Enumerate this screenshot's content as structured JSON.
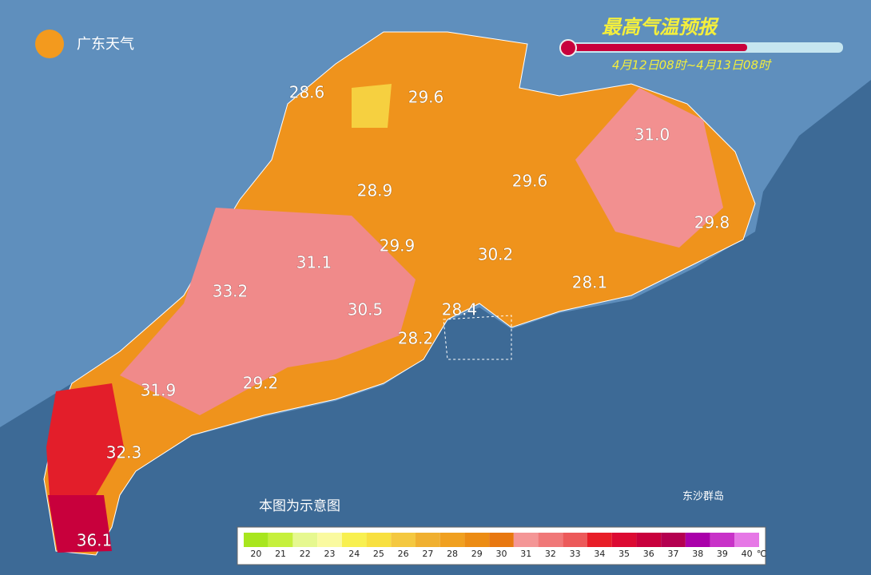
{
  "header": {
    "logo": "广东天气",
    "title": "最高气温预报",
    "period": "4月12日08时~4月13日08时"
  },
  "map": {
    "labels": [
      "28.6",
      "29.6",
      "31.0",
      "28.9",
      "29.6",
      "29.8",
      "29.9",
      "31.1",
      "30.2",
      "33.2",
      "28.1",
      "30.5",
      "28.4",
      "28.2",
      "31.9",
      "29.2",
      "32.3",
      "36.1"
    ],
    "note": "本图为示意图",
    "island": "东沙群岛"
  },
  "legend": {
    "unit": "℃",
    "items": [
      {
        "value": 20,
        "color": "#a8e61e"
      },
      {
        "value": 21,
        "color": "#c6f03c"
      },
      {
        "value": 22,
        "color": "#e6f890"
      },
      {
        "value": 23,
        "color": "#fafaa0"
      },
      {
        "value": 24,
        "color": "#f8f050"
      },
      {
        "value": 25,
        "color": "#f8e040"
      },
      {
        "value": 26,
        "color": "#f4c840"
      },
      {
        "value": 27,
        "color": "#f0b030"
      },
      {
        "value": 28,
        "color": "#f0a020"
      },
      {
        "value": 29,
        "color": "#ec8c14"
      },
      {
        "value": 30,
        "color": "#e87810"
      },
      {
        "value": 31,
        "color": "#f49696"
      },
      {
        "value": 32,
        "color": "#f07878"
      },
      {
        "value": 33,
        "color": "#ec5a5a"
      },
      {
        "value": 34,
        "color": "#e81e28"
      },
      {
        "value": 35,
        "color": "#dc0a32"
      },
      {
        "value": 36,
        "color": "#c8003c"
      },
      {
        "value": 37,
        "color": "#b40050"
      },
      {
        "value": 38,
        "color": "#aa00aa"
      },
      {
        "value": 39,
        "color": "#c832c8"
      },
      {
        "value": 40,
        "color": "#e678e6"
      }
    ]
  }
}
